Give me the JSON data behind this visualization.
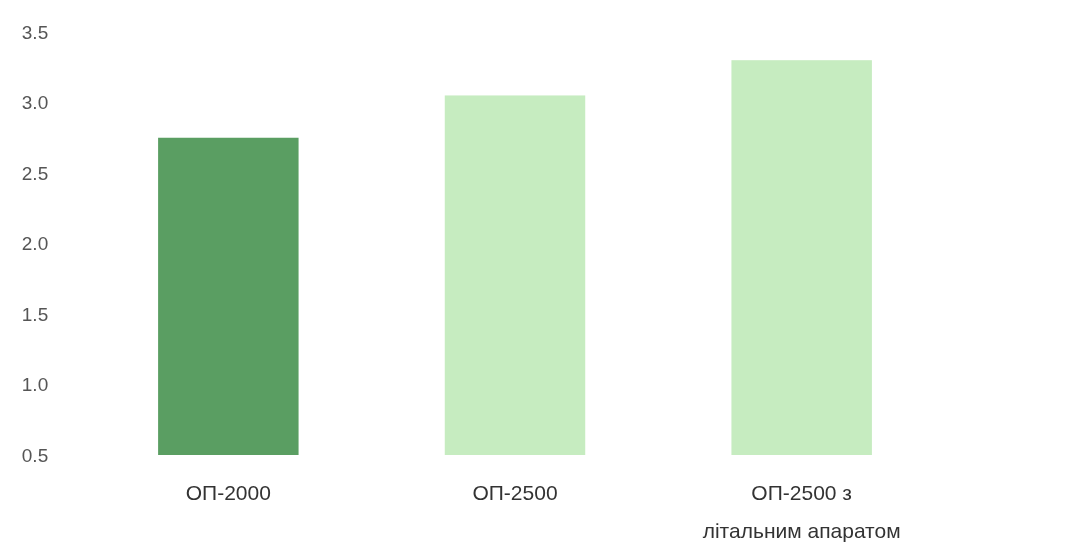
{
  "chart_data": {
    "type": "bar",
    "categories": [
      "ОП-2000",
      "ОП-2500",
      "ОП-2500 з літальним апаратом"
    ],
    "values": [
      2.75,
      3.05,
      3.3
    ],
    "colors": [
      "#5a9e62",
      "#c6ecc0",
      "#c6ecc0"
    ],
    "ylim": [
      0.5,
      3.5
    ],
    "yticks": [
      {
        "value": 0.5,
        "label": "0.5"
      },
      {
        "value": 1,
        "label": "1.0"
      },
      {
        "value": 1.5,
        "label": "1.5"
      },
      {
        "value": 2,
        "label": "2.0"
      },
      {
        "value": 2.5,
        "label": "2.5"
      },
      {
        "value": 3,
        "label": "3.0"
      },
      {
        "value": 3.5,
        "label": "3.5"
      }
    ],
    "grid": false
  }
}
